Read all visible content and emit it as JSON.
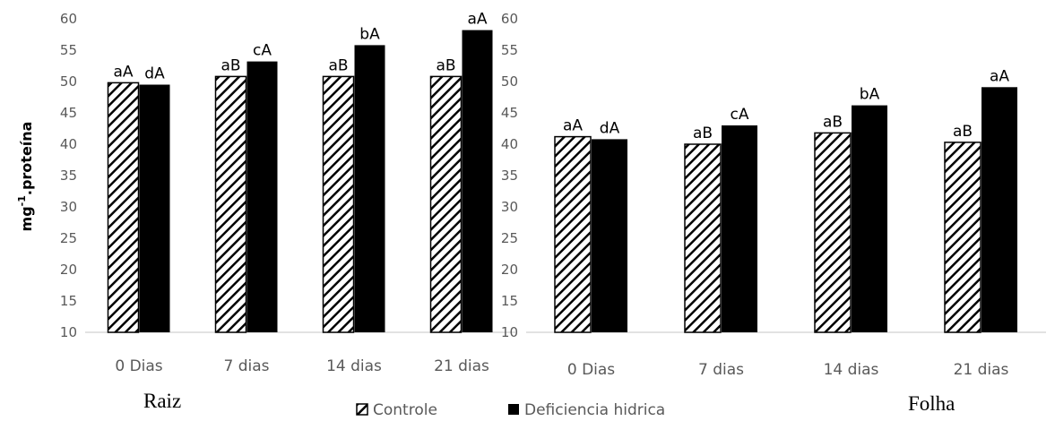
{
  "ylabel_main": "mg",
  "ylabel_sup": "-1",
  "ylabel_rest": ".proteína",
  "legend": {
    "controle": "Controle",
    "deficiencia": "Deficiencia hidrica"
  },
  "colors": {
    "axis": "#d9d9d9",
    "tick_text": "#595959",
    "bar_solid": "#000000"
  },
  "chart_data": [
    {
      "type": "bar",
      "panel_label": "Raiz",
      "categories": [
        "0 Dias",
        "7 dias",
        "14 dias",
        "21 dias"
      ],
      "ylim": [
        10,
        60
      ],
      "yticks": [
        10,
        15,
        20,
        25,
        30,
        35,
        40,
        45,
        50,
        55,
        60
      ],
      "grid": false,
      "series": [
        {
          "name": "Controle",
          "pattern": "hatched",
          "values": [
            49.8,
            50.8,
            50.8,
            50.8
          ],
          "labels": [
            "aA",
            "aB",
            "aB",
            "aB"
          ]
        },
        {
          "name": "Deficiencia hidrica",
          "pattern": "solid",
          "values": [
            49.5,
            53.2,
            55.8,
            58.2
          ],
          "labels": [
            "dA",
            "cA",
            "bA",
            "aA"
          ]
        }
      ]
    },
    {
      "type": "bar",
      "panel_label": "Folha",
      "categories": [
        "0 Dias",
        "7 dias",
        "14 dias",
        "21 dias"
      ],
      "ylim": [
        10,
        60
      ],
      "yticks": [
        10,
        15,
        20,
        25,
        30,
        35,
        40,
        45,
        50,
        55,
        60
      ],
      "grid": false,
      "series": [
        {
          "name": "Controle",
          "pattern": "hatched",
          "values": [
            41.2,
            40.0,
            41.8,
            40.3
          ],
          "labels": [
            "aA",
            "aB",
            "aB",
            "aB"
          ]
        },
        {
          "name": "Deficiencia hidrica",
          "pattern": "solid",
          "values": [
            40.8,
            43.0,
            46.2,
            49.1
          ],
          "labels": [
            "dA",
            "cA",
            "bA",
            "aA"
          ]
        }
      ]
    }
  ]
}
